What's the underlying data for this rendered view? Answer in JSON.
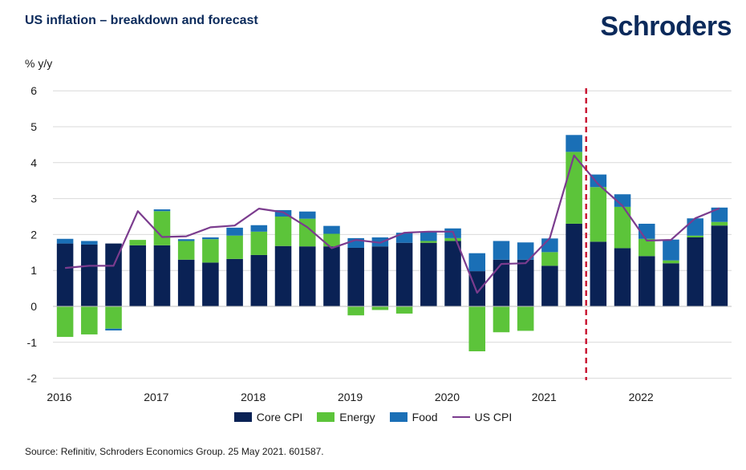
{
  "header": {
    "title": "US inflation – breakdown and forecast",
    "logo": "Schroders"
  },
  "footer": {
    "source": "Source: Refinitiv, Schroders Economics Group. 25 May 2021. 601587."
  },
  "colors": {
    "core": "#0a2255",
    "energy": "#5cc43a",
    "food": "#1a6fb6",
    "cpi": "#7b3c8e",
    "forecast_line": "#c8102e",
    "grid": "#d9d9d9"
  },
  "chart_data": {
    "type": "bar",
    "stacked": true,
    "ylabel": "% y/y",
    "ylim": [
      -2,
      6
    ],
    "yticks": [
      6,
      5,
      4,
      3,
      2,
      1,
      0,
      -1,
      -2
    ],
    "year_labels": [
      "2016",
      "2017",
      "2018",
      "2019",
      "2020",
      "2021",
      "2022"
    ],
    "year_start_index": [
      0,
      4,
      8,
      12,
      16,
      20,
      24
    ],
    "forecast_start_after_index": 21,
    "series": [
      {
        "name": "Core CPI",
        "values": [
          1.75,
          1.72,
          1.75,
          1.7,
          1.7,
          1.3,
          1.22,
          1.32,
          1.43,
          1.68,
          1.67,
          1.67,
          1.63,
          1.67,
          1.77,
          1.77,
          1.82,
          0.98,
          1.3,
          1.3,
          1.13,
          2.3,
          1.8,
          1.62,
          1.4,
          1.2,
          1.92,
          2.25
        ]
      },
      {
        "name": "Energy",
        "values": [
          -0.85,
          -0.78,
          -0.62,
          0.15,
          0.95,
          0.52,
          0.65,
          0.65,
          0.65,
          0.82,
          0.77,
          0.35,
          -0.25,
          -0.1,
          -0.2,
          0.05,
          0.08,
          -1.25,
          -0.72,
          -0.68,
          0.38,
          2.0,
          1.52,
          1.15,
          0.48,
          0.08,
          0.05,
          0.1
        ]
      },
      {
        "name": "Food",
        "values": [
          0.13,
          0.1,
          -0.05,
          0.0,
          0.05,
          0.05,
          0.05,
          0.22,
          0.18,
          0.18,
          0.2,
          0.22,
          0.27,
          0.25,
          0.28,
          0.25,
          0.27,
          0.5,
          0.52,
          0.48,
          0.38,
          0.47,
          0.35,
          0.35,
          0.42,
          0.58,
          0.48,
          0.4
        ]
      },
      {
        "name": "US CPI",
        "type": "line",
        "values": [
          1.07,
          1.13,
          1.13,
          2.65,
          1.93,
          1.95,
          2.2,
          2.25,
          2.72,
          2.62,
          2.2,
          1.62,
          1.85,
          1.77,
          2.05,
          2.08,
          2.08,
          0.38,
          1.18,
          1.2,
          1.9,
          4.2,
          3.4,
          2.8,
          1.83,
          1.85,
          2.45,
          2.73
        ]
      }
    ],
    "legend": [
      "Core CPI",
      "Energy",
      "Food",
      "US CPI"
    ]
  }
}
